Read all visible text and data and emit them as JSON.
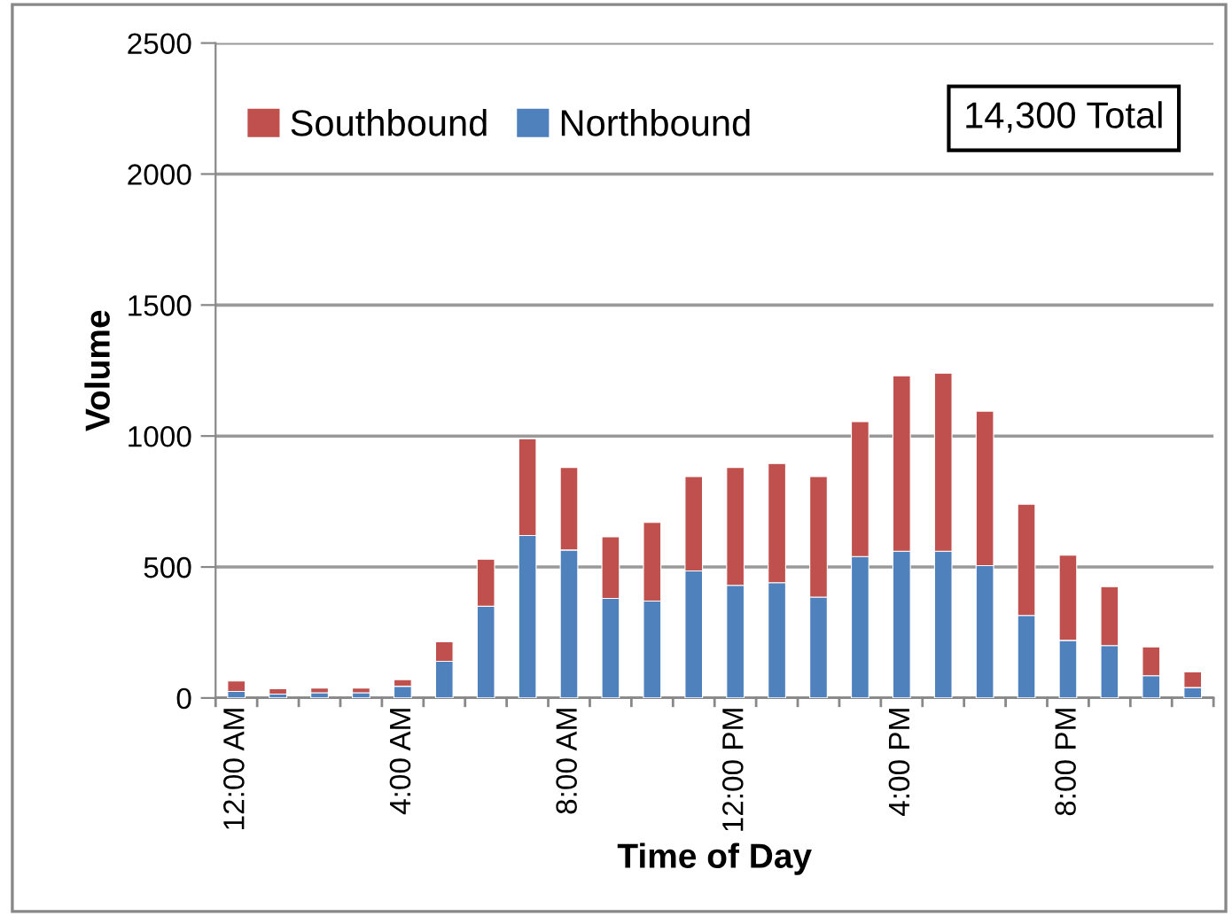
{
  "chart_data": {
    "type": "bar",
    "stacked": true,
    "xlabel": "Time of Day",
    "ylabel": "Volume",
    "categories": [
      "12:00 AM",
      null,
      null,
      null,
      "4:00 AM",
      null,
      null,
      null,
      "8:00 AM",
      null,
      null,
      null,
      "12:00 PM",
      null,
      null,
      null,
      "4:00 PM",
      null,
      null,
      null,
      "8:00 PM",
      null,
      null,
      null
    ],
    "series": [
      {
        "name": "Northbound",
        "color": "#4f81bd",
        "values": [
          25,
          15,
          20,
          20,
          45,
          140,
          350,
          620,
          565,
          380,
          370,
          485,
          430,
          440,
          385,
          540,
          560,
          560,
          505,
          315,
          220,
          200,
          85,
          40
        ]
      },
      {
        "name": "Southbound",
        "color": "#c0504d",
        "values": [
          40,
          20,
          18,
          18,
          25,
          75,
          180,
          370,
          315,
          235,
          300,
          360,
          450,
          455,
          460,
          515,
          670,
          680,
          590,
          425,
          325,
          225,
          110,
          60
        ]
      }
    ],
    "ylim": [
      0,
      2500
    ],
    "yticks": [
      0,
      500,
      1000,
      1500,
      2000,
      2500
    ],
    "grid": "y",
    "legend": "top left",
    "annotations": [
      "14,300 Total"
    ]
  }
}
